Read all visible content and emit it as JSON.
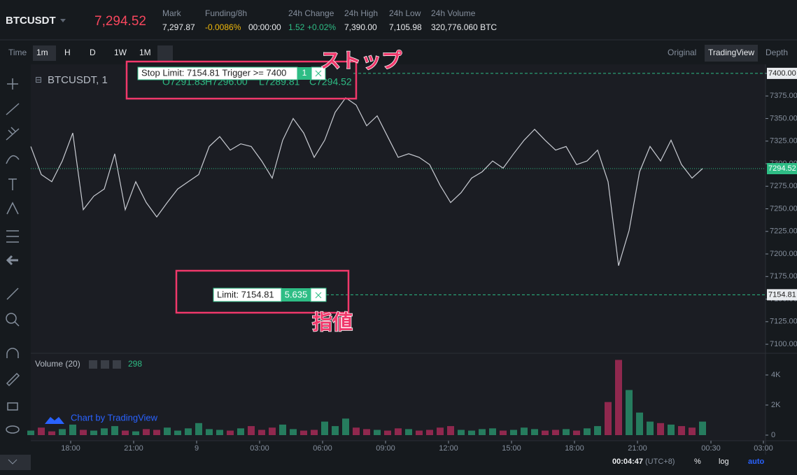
{
  "header": {
    "symbol": "BTCUSDT",
    "last_price": "7,294.52",
    "stats": [
      {
        "label": "Mark",
        "value": "7,297.87"
      },
      {
        "label": "Funding/8h",
        "value": "-0.0086%",
        "extra": "00:00:00"
      },
      {
        "label": "24h Change",
        "value": "1.52",
        "extra": "+0.02%"
      },
      {
        "label": "24h High",
        "value": "7,390.00"
      },
      {
        "label": "24h Low",
        "value": "7,105.98"
      },
      {
        "label": "24h Volume",
        "value": "320,776.060 BTC"
      }
    ]
  },
  "toolbar": {
    "time": "Time",
    "intervals": [
      "1m",
      "H",
      "D",
      "1W",
      "1M"
    ],
    "views": [
      "Original",
      "TradingView",
      "Depth"
    ]
  },
  "chart": {
    "legend": {
      "symbol": "BTCUSDT, 1",
      "open": "O7291.83",
      "high": "H7296.00",
      "low": "L7289.81",
      "close": "C7294.52"
    },
    "xlim": [
      -7.9,
      27.1
    ],
    "xticks": [
      {
        "value": -6,
        "label": "18:00"
      },
      {
        "value": -3,
        "label": "21:00"
      },
      {
        "value": 0,
        "label": "9"
      },
      {
        "value": 3,
        "label": "03:00"
      },
      {
        "value": 6,
        "label": "06:00"
      },
      {
        "value": 9,
        "label": "09:00"
      },
      {
        "value": 12,
        "label": "12:00"
      },
      {
        "value": 15,
        "label": "15:00"
      },
      {
        "value": 18,
        "label": "18:00"
      },
      {
        "value": 21,
        "label": "21:00"
      },
      {
        "value": 24.5,
        "label": "00:30"
      },
      {
        "value": 27,
        "label": "03:00"
      }
    ],
    "ylim": [
      7090,
      7410
    ],
    "yticks": [
      {
        "value": 7100,
        "label": "7100.00"
      },
      {
        "value": 7125,
        "label": "7125.00"
      },
      {
        "value": 7150,
        "label": "7150.00"
      },
      {
        "value": 7175,
        "label": "7175.00"
      },
      {
        "value": 7200,
        "label": "7200.00"
      },
      {
        "value": 7225,
        "label": "7225.00"
      },
      {
        "value": 7250,
        "label": "7250.00"
      },
      {
        "value": 7275,
        "label": "7275.00"
      },
      {
        "value": 7300,
        "label": "7300.00"
      },
      {
        "value": 7325,
        "label": "7325.00"
      },
      {
        "value": 7350,
        "label": "7350.00"
      },
      {
        "value": 7375,
        "label": "7375.00"
      },
      {
        "value": 7400,
        "label": "7400.00"
      }
    ],
    "price": {
      "color": "#c9ccd3",
      "x": [
        -7.9,
        -7.4,
        -6.9,
        -6.4,
        -5.9,
        -5.4,
        -4.9,
        -4.4,
        -3.9,
        -3.4,
        -2.9,
        -2.4,
        -1.9,
        -1.4,
        -0.9,
        -0.4,
        0.1,
        0.6,
        1.1,
        1.6,
        2.1,
        2.6,
        3.1,
        3.6,
        4.1,
        4.6,
        5.1,
        5.6,
        6.1,
        6.6,
        7.1,
        7.6,
        8.1,
        8.6,
        9.1,
        9.6,
        10.1,
        10.6,
        11.1,
        11.6,
        12.1,
        12.6,
        13.1,
        13.6,
        14.1,
        14.6,
        15.1,
        15.6,
        16.1,
        16.6,
        17.1,
        17.6,
        18.1,
        18.6,
        19.1,
        19.6,
        20.1,
        20.6,
        21.1,
        21.6,
        22.1,
        22.6,
        23.1,
        23.6,
        24.1
      ],
      "values": [
        7319,
        7288,
        7280,
        7303,
        7334,
        7249,
        7264,
        7272,
        7311,
        7249,
        7280,
        7257,
        7241,
        7257,
        7272,
        7280,
        7288,
        7319,
        7330,
        7315,
        7322,
        7319,
        7303,
        7284,
        7326,
        7350,
        7334,
        7307,
        7326,
        7357,
        7373,
        7365,
        7342,
        7353,
        7330,
        7307,
        7311,
        7307,
        7299,
        7276,
        7257,
        7268,
        7284,
        7291,
        7303,
        7295,
        7311,
        7326,
        7338,
        7326,
        7315,
        7319,
        7299,
        7303,
        7315,
        7280,
        7187,
        7226,
        7291,
        7319,
        7303,
        7326,
        7299,
        7284,
        7294.52
      ]
    },
    "price_lines": [
      {
        "value": 7400,
        "label": "7400.00",
        "color": "#2ebd85"
      },
      {
        "value": 7294.52,
        "label": "7294.52",
        "color": "#2ebd85"
      },
      {
        "value": 7154.81,
        "label": "7154.81",
        "color": "#2ebd85"
      }
    ],
    "orders": [
      {
        "text": "Stop Limit: 7154.81 Trigger >= 7400",
        "qty": "1"
      },
      {
        "text": "Limit: 7154.81",
        "qty": "5.635"
      }
    ],
    "annotations": [
      "ストップ",
      "指値"
    ],
    "volume": {
      "title": "Volume (20)",
      "last": "298",
      "ylim": [
        -372,
        5209
      ],
      "yticks": [
        0,
        {
          "value": 2000,
          "label": "2K"
        },
        {
          "value": 4000,
          "label": "4K"
        }
      ],
      "values": [
        300,
        500,
        250,
        400,
        700,
        350,
        300,
        450,
        600,
        300,
        250,
        400,
        350,
        500,
        300,
        450,
        800,
        400,
        350,
        300,
        450,
        600,
        350,
        500,
        700,
        400,
        300,
        350,
        900,
        600,
        1100,
        500,
        400,
        350,
        300,
        450,
        400,
        300,
        350,
        500,
        600,
        350,
        300,
        400,
        450,
        300,
        350,
        500,
        400,
        300,
        350,
        400,
        300,
        450,
        600,
        2200,
        5000,
        3000,
        1500,
        900,
        800,
        700,
        600,
        500,
        900
      ]
    },
    "credit": "Chart by TradingView"
  },
  "footer": {
    "clock": "00:04:47",
    "zone": "(UTC+8)",
    "buttons": [
      "%",
      "log",
      "auto"
    ]
  }
}
